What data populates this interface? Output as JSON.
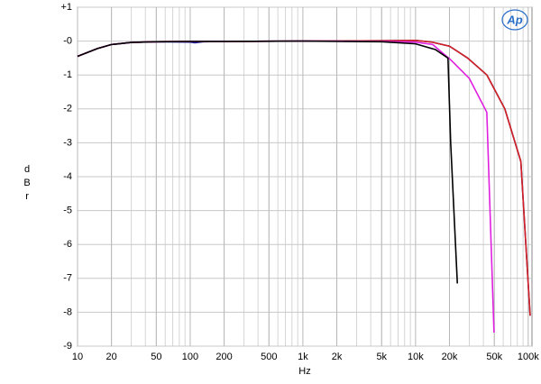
{
  "chart_data": {
    "type": "line",
    "x_label": "Hz",
    "y_label": "dBr",
    "logo": "Ap",
    "xlim": [
      10,
      108000
    ],
    "xscale": "log",
    "ylim": [
      -9,
      1
    ],
    "grid": true,
    "xticks": [
      10,
      20,
      50,
      100,
      200,
      500,
      {
        "value": 1000,
        "label": "1k"
      },
      {
        "value": 2000,
        "label": "2k"
      },
      {
        "value": 5000,
        "label": "5k"
      },
      {
        "value": 10000,
        "label": "10k"
      },
      {
        "value": 20000,
        "label": "20k"
      },
      {
        "value": 50000,
        "label": "50k"
      },
      {
        "value": 100000,
        "label": "100k"
      }
    ],
    "yticks": [
      {
        "value": 1,
        "label": "+1"
      },
      {
        "value": 0,
        "label": "-0"
      },
      -1,
      -2,
      -3,
      -4,
      -5,
      -6,
      -7,
      -8,
      -9
    ],
    "series": [
      {
        "color": "#1a1aa6",
        "x": [
          10,
          15,
          20,
          30,
          50,
          100,
          110,
          130,
          200,
          1000,
          5000,
          10000,
          14000,
          20000,
          29000,
          43000,
          62000,
          86000,
          104000
        ],
        "values": [
          -0.45,
          -0.22,
          -0.1,
          -0.04,
          -0.02,
          -0.03,
          -0.05,
          -0.02,
          -0.01,
          0,
          0.01,
          0.02,
          -0.03,
          -0.15,
          -0.5,
          -1.0,
          -2.0,
          -3.55,
          -8.1
        ]
      },
      {
        "color": "#d42020",
        "x": [
          10,
          15,
          20,
          30,
          50,
          100,
          200,
          1000,
          5000,
          10000,
          14000,
          20000,
          29000,
          43000,
          62000,
          86000,
          104000
        ],
        "values": [
          -0.45,
          -0.22,
          -0.1,
          -0.04,
          -0.02,
          -0.01,
          -0.01,
          0,
          0.01,
          0.02,
          -0.03,
          -0.15,
          -0.5,
          -1.0,
          -2.0,
          -3.55,
          -8.1
        ]
      },
      {
        "color": "#e020e0",
        "x": [
          10,
          15,
          20,
          30,
          50,
          100,
          200,
          1000,
          5000,
          9900,
          14200,
          20500,
          30000,
          42900,
          49700
        ],
        "values": [
          -0.45,
          -0.22,
          -0.1,
          -0.04,
          -0.02,
          -0.01,
          -0.01,
          0,
          -0.01,
          -0.03,
          -0.1,
          -0.55,
          -1.1,
          -2.1,
          -8.6
        ]
      },
      {
        "color": "#000000",
        "x": [
          10,
          15,
          20,
          30,
          50,
          100,
          200,
          1000,
          5000,
          10000,
          15000,
          19400,
          20500,
          23500
        ],
        "values": [
          -0.45,
          -0.22,
          -0.1,
          -0.04,
          -0.02,
          -0.01,
          -0.01,
          0,
          -0.02,
          -0.08,
          -0.25,
          -0.5,
          -3.0,
          -7.15
        ]
      }
    ]
  }
}
